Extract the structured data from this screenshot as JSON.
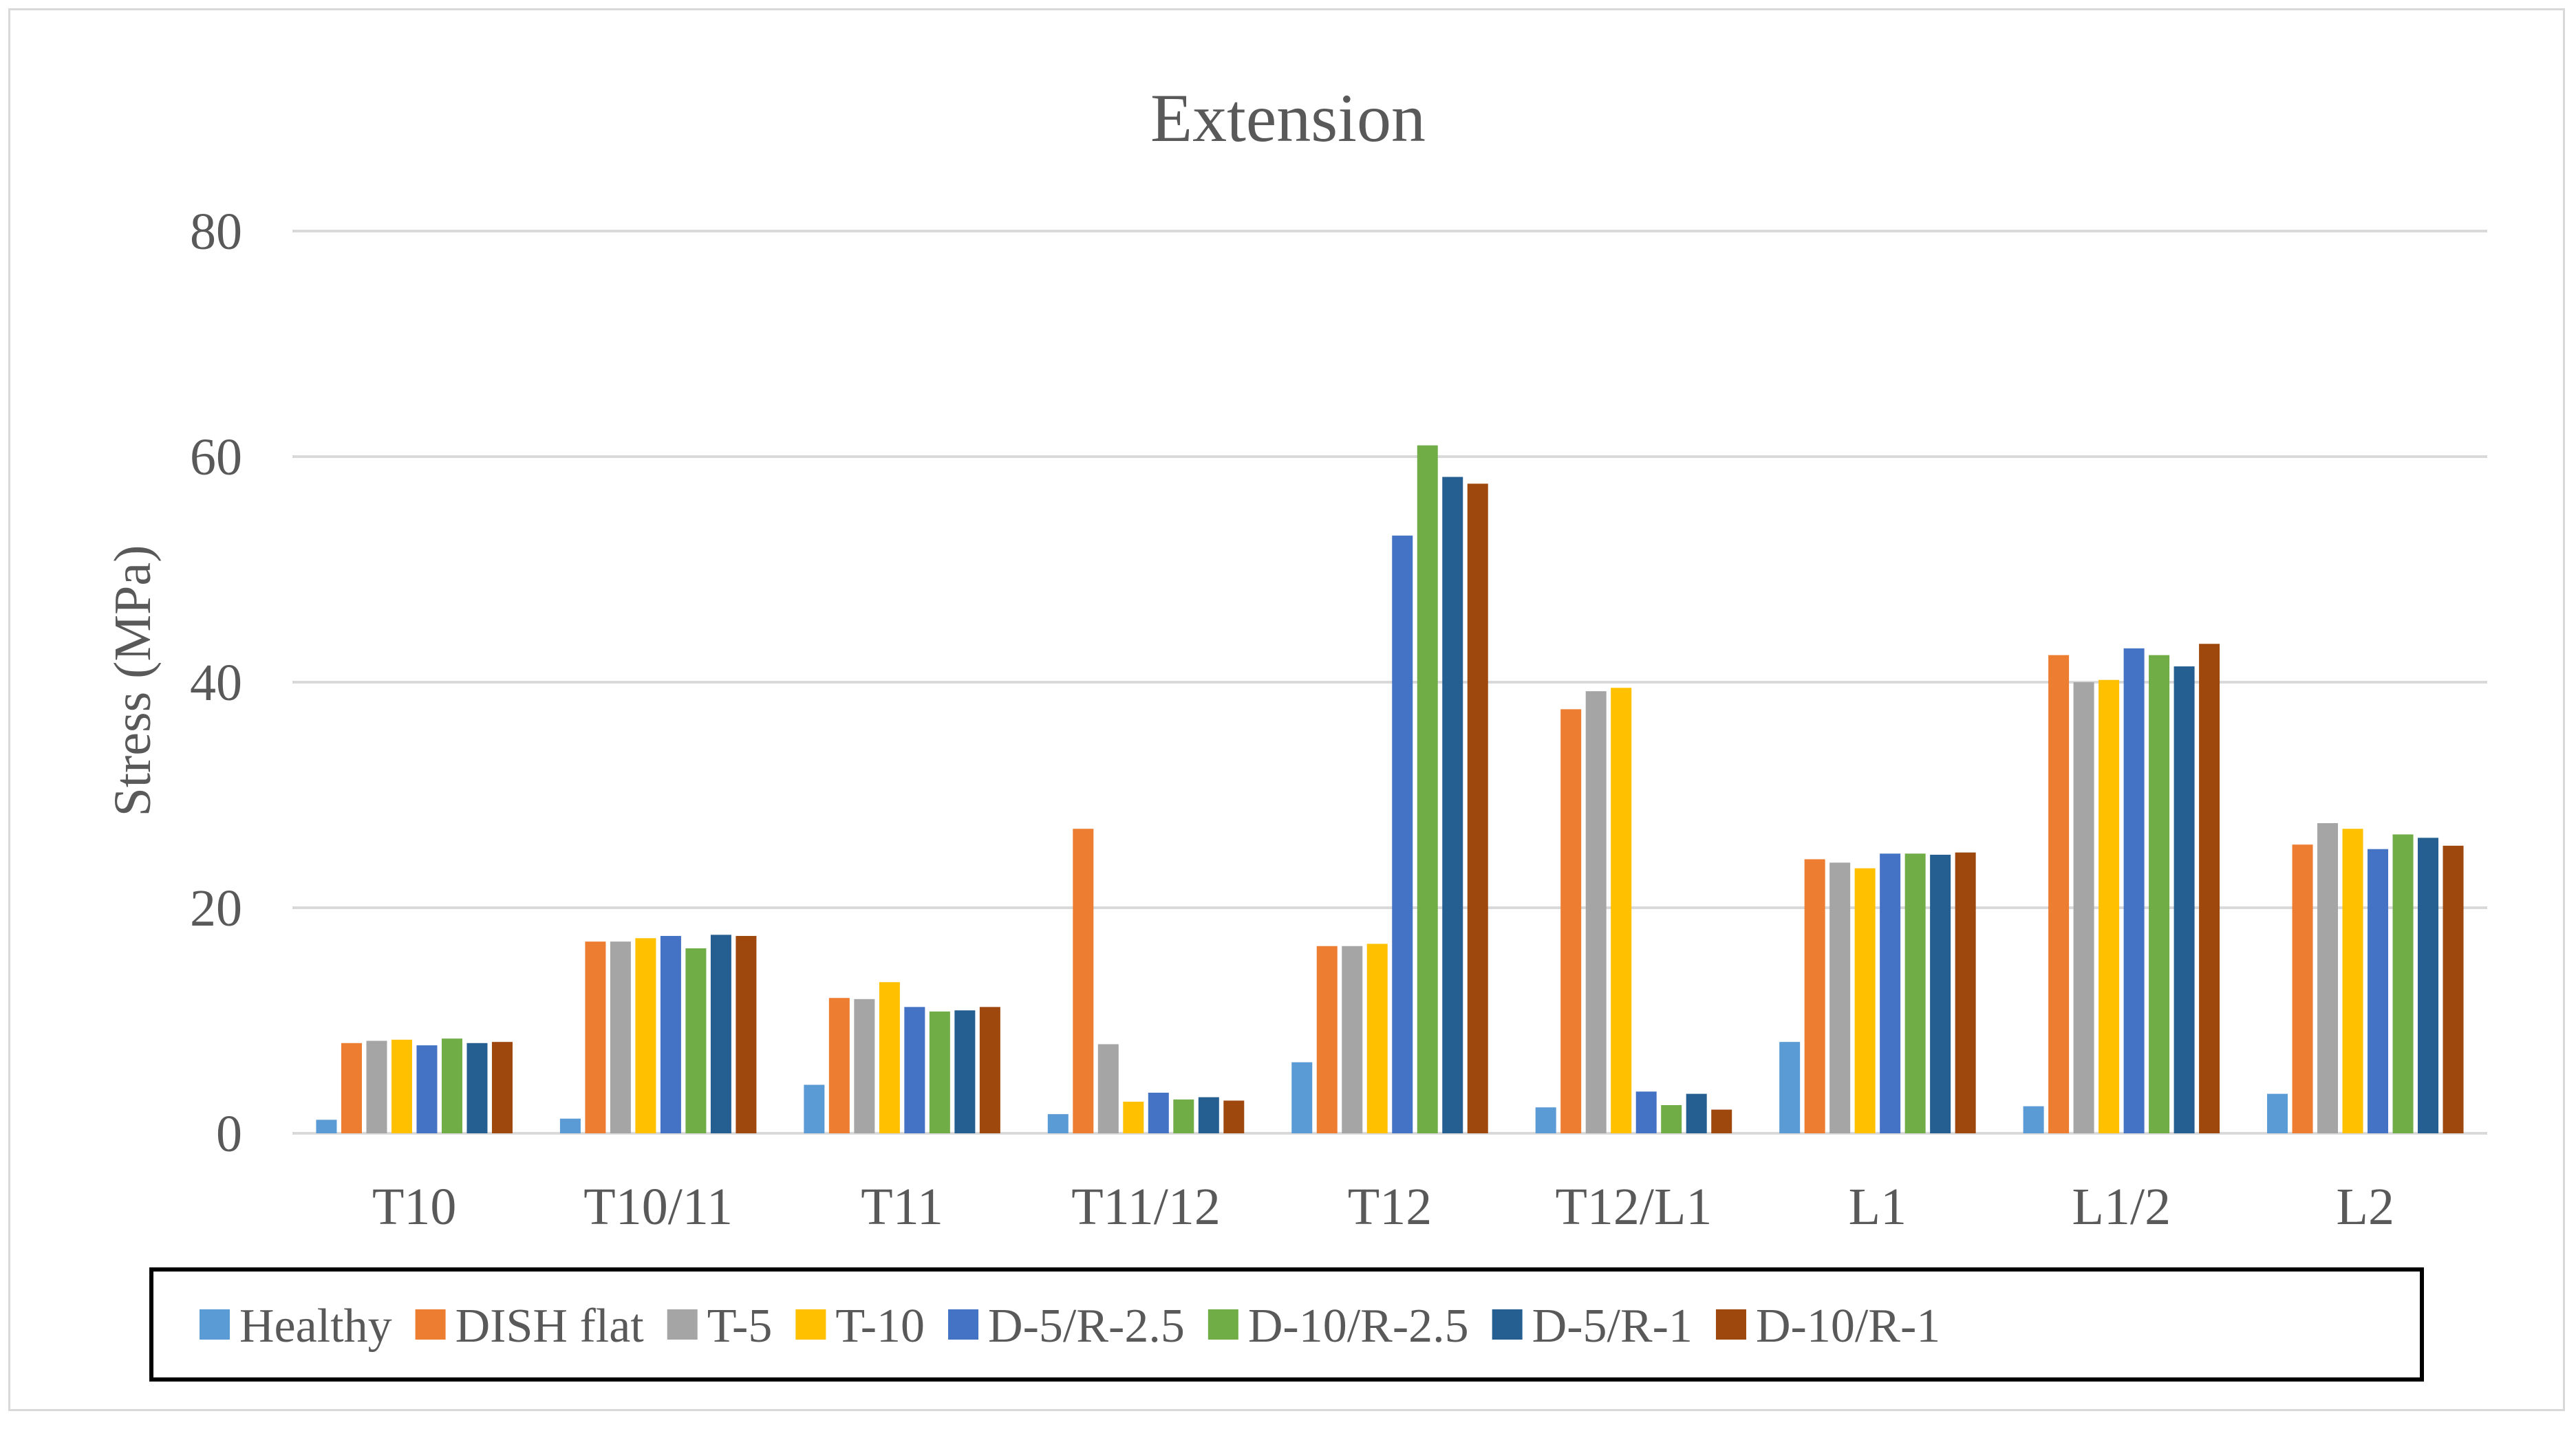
{
  "chart_data": {
    "type": "bar",
    "title": "Extension",
    "xlabel": "",
    "ylabel": "Stress (MPa)",
    "ylim": [
      0,
      80
    ],
    "yticks": [
      0,
      20,
      40,
      60,
      80
    ],
    "grid": true,
    "legend_position": "bottom",
    "categories": [
      "T10",
      "T10/11",
      "T11",
      "T11/12",
      "T12",
      "T12/L1",
      "L1",
      "L1/2",
      "L2"
    ],
    "series": [
      {
        "name": "Healthy",
        "color": "#5b9bd5",
        "values": [
          1.2,
          1.3,
          4.3,
          1.7,
          6.3,
          2.3,
          8.1,
          2.4,
          3.5
        ]
      },
      {
        "name": "DISH flat",
        "color": "#ed7d31",
        "values": [
          8.0,
          17.0,
          12.0,
          27.0,
          16.6,
          37.6,
          24.3,
          42.4,
          25.6
        ]
      },
      {
        "name": "T-5",
        "color": "#a5a5a5",
        "values": [
          8.2,
          17.0,
          11.9,
          7.9,
          16.6,
          39.2,
          24.0,
          40.0,
          27.5
        ]
      },
      {
        "name": "T-10",
        "color": "#ffc000",
        "values": [
          8.3,
          17.3,
          13.4,
          2.8,
          16.8,
          39.5,
          23.5,
          40.2,
          27.0
        ]
      },
      {
        "name": "D-5/R-2.5",
        "color": "#4472c4",
        "values": [
          7.8,
          17.5,
          11.2,
          3.6,
          53.0,
          3.7,
          24.8,
          43.0,
          25.2
        ]
      },
      {
        "name": "D-10/R-2.5",
        "color": "#70ad47",
        "values": [
          8.4,
          16.4,
          10.8,
          3.0,
          61.0,
          2.5,
          24.8,
          42.4,
          26.5
        ]
      },
      {
        "name": "D-5/R-1",
        "color": "#255e91",
        "values": [
          8.0,
          17.6,
          10.9,
          3.2,
          58.2,
          3.5,
          24.7,
          41.4,
          26.2
        ]
      },
      {
        "name": "D-10/R-1",
        "color": "#9e480e",
        "values": [
          8.1,
          17.5,
          11.2,
          2.9,
          57.6,
          2.1,
          24.9,
          43.4,
          25.5
        ]
      }
    ]
  }
}
